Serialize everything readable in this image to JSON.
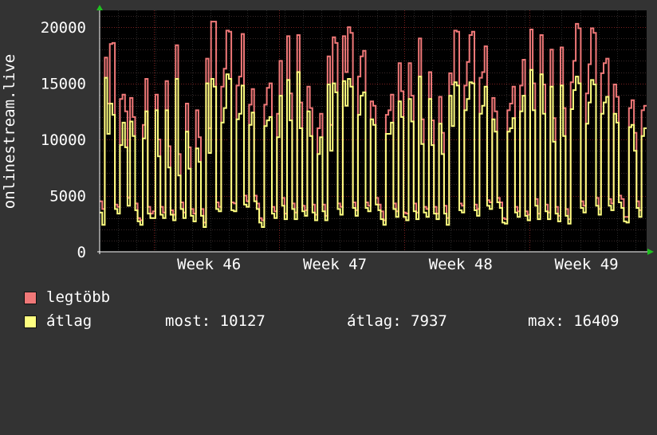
{
  "chart_data": {
    "type": "line",
    "ylabel": "onlinestream.live",
    "ylim": [
      0,
      21500
    ],
    "y_ticks": [
      "0",
      "5000",
      "10000",
      "15000",
      "20000"
    ],
    "x_ticks": [
      "Week 46",
      "Week 47",
      "Week 48",
      "Week 49"
    ],
    "grid": "on",
    "legend_placement": "bottom-left",
    "series": [
      {
        "name": "legtöbb",
        "color": "#f07878",
        "values": [
          4500,
          3800,
          17300,
          13200,
          18500,
          18600,
          4200,
          4000,
          13600,
          14000,
          12500,
          4800,
          13700,
          12000,
          4300,
          3000,
          2800,
          11300,
          15400,
          4000,
          3400,
          3600,
          14000,
          10000,
          4000,
          3500,
          15200,
          9400,
          3700,
          3300,
          18400,
          8700,
          4400,
          3500,
          13200,
          9300,
          3800,
          3400,
          12600,
          10200,
          3800,
          2600,
          17200,
          11000,
          20500,
          20500,
          4400,
          4000,
          14700,
          16300,
          19700,
          19600,
          4400,
          4300,
          14800,
          15600,
          19400,
          5000,
          4500,
          13100,
          14500,
          5000,
          4300,
          3000,
          2800,
          13100,
          14600,
          15000,
          4000,
          3600,
          12300,
          17000,
          4800,
          3400,
          19200,
          14100,
          4300,
          3500,
          19300,
          13300,
          4100,
          3700,
          14700,
          12800,
          4200,
          3300,
          11000,
          12300,
          4200,
          3200,
          17400,
          11300,
          19100,
          18600,
          4300,
          4000,
          19200,
          16000,
          20000,
          19500,
          4400,
          3700,
          15600,
          17400,
          17900,
          4400,
          4100,
          13400,
          13000,
          4800,
          4200,
          3600,
          2800,
          12200,
          12600,
          14000,
          4300,
          3600,
          16800,
          14300,
          3500,
          3400,
          16800,
          13900,
          4300,
          3500,
          19000,
          11800,
          4000,
          3800,
          16000,
          11700,
          4000,
          3400,
          13800,
          10600,
          4100,
          3000,
          15900,
          14900,
          19700,
          19600,
          4300,
          4100,
          14800,
          16900,
          19300,
          19600,
          4200,
          3800,
          15500,
          16000,
          18300,
          4600,
          4400,
          13700,
          12500,
          4800,
          4400,
          3000,
          2900,
          12600,
          13200,
          14700,
          4000,
          3600,
          14800,
          17100,
          3600,
          3300,
          19800,
          15000,
          4700,
          3400,
          19300,
          14900,
          4200,
          3500,
          18000,
          11900,
          4000,
          3200,
          18200,
          12800,
          3800,
          2900,
          15100,
          17000,
          20300,
          19900,
          4500,
          4100,
          14100,
          16700,
          19900,
          19500,
          4800,
          3800,
          15900,
          16800,
          17200,
          4700,
          4300,
          14900,
          13800,
          5000,
          4700,
          3100,
          3100,
          12800,
          13500,
          10600,
          4500,
          3700,
          12600,
          13000
        ]
      },
      {
        "name": "átlag",
        "color": "#ffff80",
        "values": [
          3500,
          2400,
          15500,
          10500,
          13200,
          12200,
          3800,
          3400,
          9500,
          11500,
          9300,
          4100,
          11600,
          10300,
          3700,
          2700,
          2400,
          10100,
          12500,
          3400,
          3000,
          3000,
          12600,
          8500,
          3300,
          3000,
          12600,
          7500,
          3300,
          2800,
          15400,
          6800,
          3800,
          3000,
          10700,
          7400,
          3200,
          2700,
          9200,
          8000,
          3200,
          2200,
          15000,
          8800,
          15400,
          14700,
          3800,
          3600,
          11500,
          12800,
          15800,
          15400,
          3700,
          3600,
          11800,
          12300,
          14800,
          4200,
          4000,
          11300,
          12400,
          4500,
          3800,
          2600,
          2200,
          11200,
          11700,
          12000,
          3400,
          3000,
          10200,
          13900,
          4100,
          2900,
          15300,
          11700,
          3800,
          2900,
          16000,
          11000,
          3600,
          3200,
          12500,
          10300,
          3500,
          2800,
          8700,
          10200,
          3600,
          2800,
          14900,
          9000,
          15000,
          14200,
          3800,
          3300,
          15200,
          13000,
          15400,
          14700,
          3900,
          3200,
          12200,
          13900,
          14200,
          3900,
          3600,
          11800,
          11300,
          4200,
          3700,
          2900,
          2400,
          10500,
          10500,
          11500,
          3800,
          3100,
          13400,
          12000,
          3100,
          2800,
          13600,
          11600,
          3600,
          2900,
          15600,
          9600,
          3500,
          3100,
          13600,
          9500,
          3400,
          2900,
          11400,
          8700,
          3400,
          2400,
          13900,
          11200,
          15100,
          14800,
          3700,
          3500,
          12600,
          13600,
          15100,
          15000,
          3700,
          3200,
          12300,
          13000,
          14700,
          4100,
          3800,
          11800,
          10700,
          4400,
          3900,
          2600,
          2500,
          10700,
          11000,
          11900,
          3500,
          3100,
          12500,
          13900,
          3200,
          2800,
          16200,
          12600,
          4100,
          2900,
          15800,
          12300,
          3600,
          2900,
          14700,
          9800,
          3400,
          2700,
          14800,
          10300,
          3200,
          2500,
          12700,
          14400,
          15600,
          15000,
          3900,
          3500,
          11400,
          13300,
          15300,
          14900,
          4100,
          3300,
          12300,
          13300,
          13800,
          4100,
          3700,
          12300,
          11500,
          4400,
          3900,
          2700,
          2600,
          11100,
          11300,
          9000,
          3900,
          3100,
          10300,
          11000
        ]
      }
    ],
    "stats": {
      "most_label": "most:",
      "most_value": "10127",
      "atlag_label": "átlag:",
      "atlag_value": "7937",
      "max_label": "max:",
      "max_value": "16409"
    }
  }
}
